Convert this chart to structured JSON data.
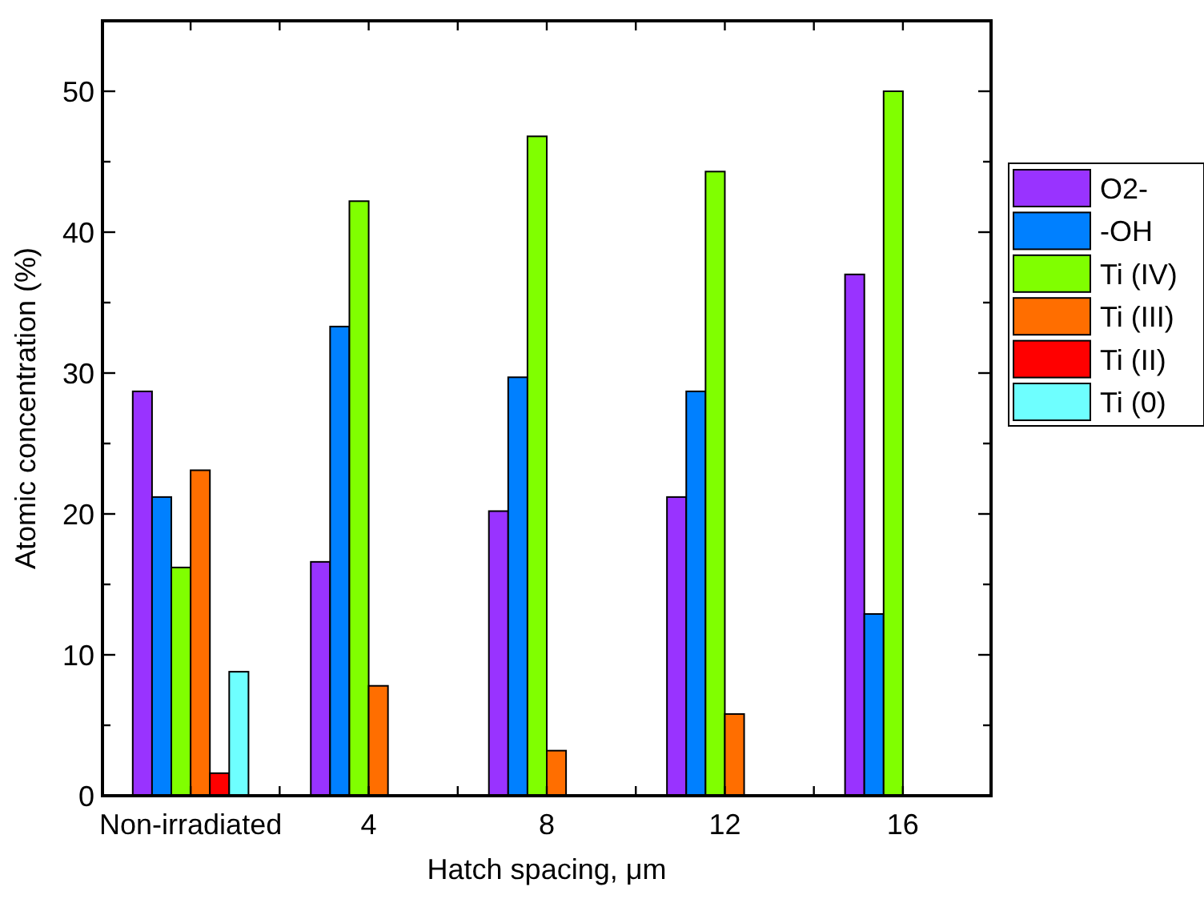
{
  "chart_data": {
    "type": "bar",
    "xlabel": "Hatch spacing, μm",
    "ylabel": "Atomic concentration (%)",
    "categories": [
      "Non-irradiated",
      "4",
      "8",
      "12",
      "16"
    ],
    "series": [
      {
        "name": "O2-",
        "color": "#9933ff",
        "values": [
          28.7,
          16.6,
          20.2,
          21.2,
          37.0
        ]
      },
      {
        "name": "-OH",
        "color": "#0080ff",
        "values": [
          21.2,
          33.3,
          29.7,
          28.7,
          12.9
        ]
      },
      {
        "name": "Ti (IV)",
        "color": "#80ff00",
        "values": [
          16.2,
          42.2,
          46.8,
          44.3,
          50.0
        ]
      },
      {
        "name": "Ti (III)",
        "color": "#ff6e00",
        "values": [
          23.1,
          7.8,
          3.2,
          5.8,
          null
        ]
      },
      {
        "name": "Ti (II)",
        "color": "#ff0000",
        "values": [
          1.6,
          null,
          null,
          null,
          null
        ]
      },
      {
        "name": "Ti (0)",
        "color": "#6effff",
        "values": [
          8.8,
          null,
          null,
          null,
          null
        ]
      }
    ],
    "ylim": [
      0,
      55
    ],
    "yticks": [
      0,
      {
        "value": 5,
        "label": null
      },
      10,
      {
        "value": 15,
        "label": null
      },
      20,
      {
        "value": 25,
        "label": null
      },
      30,
      {
        "value": 35,
        "label": null
      },
      40,
      {
        "value": 45,
        "label": null
      },
      50
    ],
    "legend": "right",
    "grid": false
  }
}
